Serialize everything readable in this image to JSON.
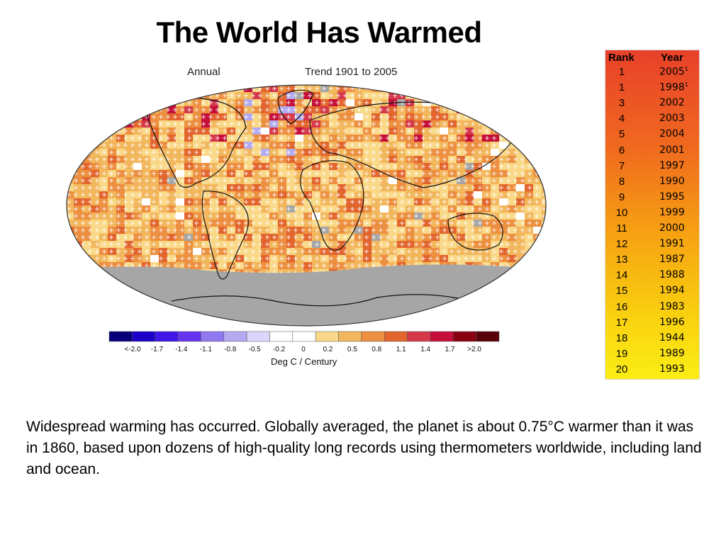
{
  "slide": {
    "title": "The World Has Warmed",
    "body": "Widespread warming has occurred.  Globally averaged, the planet is about 0.75°C warmer than it was in 1860, based upon dozens of high-quality long records using thermometers worldwide, including land and ocean."
  },
  "map": {
    "label_left": "Annual",
    "label_right": "Trend 1901 to 2005",
    "ocean_color": "#ffffff",
    "no_data_color": "#a6a6a6",
    "legend": {
      "title": "Deg C / Century",
      "colors": [
        "#05007a",
        "#1c00c8",
        "#3f17e6",
        "#6634ef",
        "#8f78f0",
        "#b3aaf2",
        "#dcd7fa",
        "#ffffff",
        "#ffffff",
        "#f9d888",
        "#f2b75d",
        "#ec8f40",
        "#e2652e",
        "#d5384a",
        "#c50f3a",
        "#8a0010",
        "#5a0008"
      ],
      "ticks": [
        "<-2.0",
        "-1.7",
        "-1.4",
        "-1.1",
        "-0.8",
        "-0.5",
        "-0.2",
        "0",
        "0.2",
        "0.5",
        "0.8",
        "1.1",
        "1.4",
        "1.7",
        ">2.0"
      ]
    }
  },
  "ranking": {
    "rank_header": "Rank",
    "year_header": "Year",
    "rows": [
      {
        "rank": "1",
        "year": "2005",
        "note": "1"
      },
      {
        "rank": "1",
        "year": "1998",
        "note": "1"
      },
      {
        "rank": "3",
        "year": "2002",
        "note": ""
      },
      {
        "rank": "4",
        "year": "2003",
        "note": ""
      },
      {
        "rank": "5",
        "year": "2004",
        "note": ""
      },
      {
        "rank": "6",
        "year": "2001",
        "note": ""
      },
      {
        "rank": "7",
        "year": "1997",
        "note": ""
      },
      {
        "rank": "8",
        "year": "1990",
        "note": ""
      },
      {
        "rank": "9",
        "year": "1995",
        "note": ""
      },
      {
        "rank": "10",
        "year": "1999",
        "note": ""
      },
      {
        "rank": "11",
        "year": "2000",
        "note": ""
      },
      {
        "rank": "12",
        "year": "1991",
        "note": ""
      },
      {
        "rank": "13",
        "year": "1987",
        "note": ""
      },
      {
        "rank": "14",
        "year": "1988",
        "note": ""
      },
      {
        "rank": "15",
        "year": "1994",
        "note": ""
      },
      {
        "rank": "16",
        "year": "1983",
        "note": ""
      },
      {
        "rank": "17",
        "year": "1996",
        "note": ""
      },
      {
        "rank": "18",
        "year": "1944",
        "note": ""
      },
      {
        "rank": "19",
        "year": "1989",
        "note": ""
      },
      {
        "rank": "20",
        "year": "1993",
        "note": ""
      }
    ]
  }
}
